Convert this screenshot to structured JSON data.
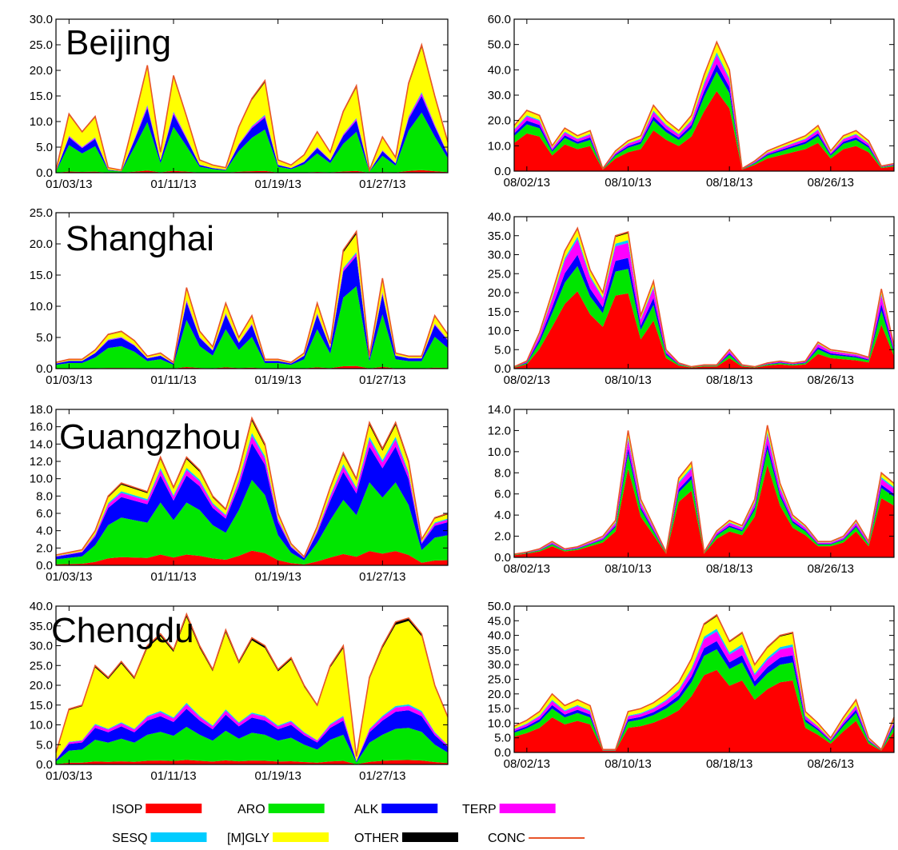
{
  "legend": [
    {
      "key": "ISOP",
      "label": "ISOP",
      "color": "#ff0000",
      "style": "bar"
    },
    {
      "key": "ARO",
      "label": "ARO",
      "color": "#00e600",
      "style": "bar"
    },
    {
      "key": "ALK",
      "label": "ALK",
      "color": "#0000ff",
      "style": "bar"
    },
    {
      "key": "TERP",
      "label": "TERP",
      "color": "#ff00ff",
      "style": "bar"
    },
    {
      "key": "SESQ",
      "label": "SESQ",
      "color": "#00ccff",
      "style": "bar"
    },
    {
      "key": "MGLY",
      "label": "[M]GLY",
      "color": "#ffff00",
      "style": "bar"
    },
    {
      "key": "OTHER",
      "label": "OTHER",
      "color": "#000000",
      "style": "bar"
    },
    {
      "key": "CONC",
      "label": "CONC",
      "color": "#e8542a",
      "style": "line"
    }
  ],
  "chart_data": [
    {
      "type": "area",
      "stacked": true,
      "city": "Beijing",
      "season": "January 2013",
      "ylim": [
        0,
        30
      ],
      "yticks": [
        "0.0",
        "5.0",
        "10.0",
        "15.0",
        "20.0",
        "25.0",
        "30.0"
      ],
      "xticks": [
        "01/03/13",
        "01/11/13",
        "01/19/13",
        "01/27/13"
      ],
      "x_start": "2013-01-02",
      "x_end": "2013-02-01",
      "tick_dates": [
        "2013-01-03",
        "2013-01-11",
        "2013-01-19",
        "2013-01-27"
      ],
      "x": [
        "2013-01-02",
        "2013-01-03",
        "2013-01-04",
        "2013-01-05",
        "2013-01-06",
        "2013-01-07",
        "2013-01-08",
        "2013-01-09",
        "2013-01-10",
        "2013-01-11",
        "2013-01-12",
        "2013-01-13",
        "2013-01-14",
        "2013-01-15",
        "2013-01-16",
        "2013-01-17",
        "2013-01-18",
        "2013-01-19",
        "2013-01-20",
        "2013-01-21",
        "2013-01-22",
        "2013-01-23",
        "2013-01-24",
        "2013-01-25",
        "2013-01-26",
        "2013-01-27",
        "2013-01-28",
        "2013-01-29",
        "2013-01-30",
        "2013-01-31",
        "2013-02-01"
      ],
      "total": [
        0.5,
        11.5,
        8.0,
        11.0,
        1.0,
        0.5,
        10.5,
        21.0,
        4.0,
        19.0,
        11.0,
        2.5,
        1.5,
        1.0,
        9.0,
        14.5,
        18.0,
        2.5,
        1.5,
        3.5,
        8.0,
        4.0,
        12.0,
        17.0,
        0.5,
        7.0,
        3.0,
        17.5,
        25.0,
        15.0,
        6.0
      ],
      "fractions": {
        "ISOP": 0.02,
        "ARO": 0.45,
        "ALK": 0.13,
        "TERP": 0.02,
        "SESQ": 0.01,
        "MGLY": 0.35,
        "OTHER": 0.02
      }
    },
    {
      "type": "area",
      "stacked": true,
      "city": "",
      "season": "August 2013",
      "ylim": [
        0,
        60
      ],
      "yticks": [
        "0.0",
        "10.0",
        "20.0",
        "30.0",
        "40.0",
        "50.0",
        "60.0"
      ],
      "xticks": [
        "08/02/13",
        "08/10/13",
        "08/18/13",
        "08/26/13"
      ],
      "x_start": "2013-08-01",
      "x_end": "2013-08-31",
      "tick_dates": [
        "2013-08-02",
        "2013-08-10",
        "2013-08-18",
        "2013-08-26"
      ],
      "x": [
        "2013-08-01",
        "2013-08-02",
        "2013-08-03",
        "2013-08-04",
        "2013-08-05",
        "2013-08-06",
        "2013-08-07",
        "2013-08-08",
        "2013-08-09",
        "2013-08-10",
        "2013-08-11",
        "2013-08-12",
        "2013-08-13",
        "2013-08-14",
        "2013-08-15",
        "2013-08-16",
        "2013-08-17",
        "2013-08-18",
        "2013-08-19",
        "2013-08-20",
        "2013-08-21",
        "2013-08-22",
        "2013-08-23",
        "2013-08-24",
        "2013-08-25",
        "2013-08-26",
        "2013-08-27",
        "2013-08-28",
        "2013-08-29",
        "2013-08-30",
        "2013-08-31"
      ],
      "total": [
        18.0,
        24.0,
        22.0,
        10.0,
        17.0,
        14.0,
        16.0,
        1.0,
        8.0,
        12.0,
        14.0,
        26.0,
        20.0,
        16.0,
        22.0,
        38.0,
        51.0,
        40.0,
        1.0,
        4.0,
        8.0,
        10.0,
        12.0,
        14.0,
        18.0,
        8.0,
        14.0,
        16.0,
        12.0,
        2.0,
        3.0
      ],
      "fractions": {
        "ISOP": 0.62,
        "ARO": 0.15,
        "ALK": 0.06,
        "TERP": 0.07,
        "SESQ": 0.02,
        "MGLY": 0.07,
        "OTHER": 0.01
      }
    },
    {
      "type": "area",
      "stacked": true,
      "city": "Shanghai",
      "season": "January 2013",
      "ylim": [
        0,
        25
      ],
      "yticks": [
        "0.0",
        "5.0",
        "10.0",
        "15.0",
        "20.0",
        "25.0"
      ],
      "xticks": [
        "01/03/13",
        "01/11/13",
        "01/19/13",
        "01/27/13"
      ],
      "x_start": "2013-01-02",
      "x_end": "2013-02-01",
      "tick_dates": [
        "2013-01-03",
        "2013-01-11",
        "2013-01-19",
        "2013-01-27"
      ],
      "x": [
        "2013-01-02",
        "2013-01-03",
        "2013-01-04",
        "2013-01-05",
        "2013-01-06",
        "2013-01-07",
        "2013-01-08",
        "2013-01-09",
        "2013-01-10",
        "2013-01-11",
        "2013-01-12",
        "2013-01-13",
        "2013-01-14",
        "2013-01-15",
        "2013-01-16",
        "2013-01-17",
        "2013-01-18",
        "2013-01-19",
        "2013-01-20",
        "2013-01-21",
        "2013-01-22",
        "2013-01-23",
        "2013-01-24",
        "2013-01-25",
        "2013-01-26",
        "2013-01-27",
        "2013-01-28",
        "2013-01-29",
        "2013-01-30",
        "2013-01-31",
        "2013-02-01"
      ],
      "total": [
        1.0,
        1.5,
        1.5,
        3.0,
        5.5,
        6.0,
        4.5,
        2.0,
        2.5,
        1.0,
        13.0,
        6.0,
        3.5,
        10.5,
        5.0,
        8.5,
        1.5,
        1.5,
        1.0,
        2.5,
        10.5,
        4.0,
        19.0,
        22.0,
        2.0,
        14.5,
        2.5,
        2.0,
        2.0,
        8.5,
        5.5
      ],
      "fractions": {
        "ISOP": 0.02,
        "ARO": 0.58,
        "ALK": 0.22,
        "TERP": 0.02,
        "SESQ": 0.01,
        "MGLY": 0.13,
        "OTHER": 0.02
      }
    },
    {
      "type": "area",
      "stacked": true,
      "city": "",
      "season": "August 2013",
      "ylim": [
        0,
        40
      ],
      "yticks": [
        "0.0",
        "5.0",
        "10.0",
        "15.0",
        "20.0",
        "25.0",
        "30.0",
        "35.0",
        "40.0"
      ],
      "xticks": [
        "08/02/13",
        "08/10/13",
        "08/18/13",
        "08/26/13"
      ],
      "x_start": "2013-08-01",
      "x_end": "2013-08-31",
      "tick_dates": [
        "2013-08-02",
        "2013-08-10",
        "2013-08-18",
        "2013-08-26"
      ],
      "x": [
        "2013-08-01",
        "2013-08-02",
        "2013-08-03",
        "2013-08-04",
        "2013-08-05",
        "2013-08-06",
        "2013-08-07",
        "2013-08-08",
        "2013-08-09",
        "2013-08-10",
        "2013-08-11",
        "2013-08-12",
        "2013-08-13",
        "2013-08-14",
        "2013-08-15",
        "2013-08-16",
        "2013-08-17",
        "2013-08-18",
        "2013-08-19",
        "2013-08-20",
        "2013-08-21",
        "2013-08-22",
        "2013-08-23",
        "2013-08-24",
        "2013-08-25",
        "2013-08-26",
        "2013-08-27",
        "2013-08-28",
        "2013-08-29",
        "2013-08-30",
        "2013-08-31"
      ],
      "total": [
        0.5,
        2.0,
        9.5,
        20.0,
        31.0,
        37.0,
        26.0,
        20.0,
        35.0,
        36.0,
        14.0,
        23.0,
        5.0,
        1.5,
        0.5,
        1.0,
        1.0,
        5.0,
        1.0,
        0.5,
        1.5,
        2.0,
        1.5,
        2.0,
        7.0,
        5.0,
        4.5,
        4.0,
        3.0,
        21.0,
        6.0
      ],
      "fractions": {
        "ISOP": 0.55,
        "ARO": 0.18,
        "ALK": 0.08,
        "TERP": 0.11,
        "SESQ": 0.02,
        "MGLY": 0.05,
        "OTHER": 0.01
      }
    },
    {
      "type": "area",
      "stacked": true,
      "city": "Guangzhou",
      "season": "January 2013",
      "ylim": [
        0,
        18
      ],
      "yticks": [
        "0.0",
        "2.0",
        "4.0",
        "6.0",
        "8.0",
        "10.0",
        "12.0",
        "14.0",
        "16.0",
        "18.0"
      ],
      "xticks": [
        "01/03/13",
        "01/11/13",
        "01/19/13",
        "01/27/13"
      ],
      "x_start": "2013-01-02",
      "x_end": "2013-02-01",
      "tick_dates": [
        "2013-01-03",
        "2013-01-11",
        "2013-01-19",
        "2013-01-27"
      ],
      "x": [
        "2013-01-02",
        "2013-01-03",
        "2013-01-04",
        "2013-01-05",
        "2013-01-06",
        "2013-01-07",
        "2013-01-08",
        "2013-01-09",
        "2013-01-10",
        "2013-01-11",
        "2013-01-12",
        "2013-01-13",
        "2013-01-14",
        "2013-01-15",
        "2013-01-16",
        "2013-01-17",
        "2013-01-18",
        "2013-01-19",
        "2013-01-20",
        "2013-01-21",
        "2013-01-22",
        "2013-01-23",
        "2013-01-24",
        "2013-01-25",
        "2013-01-26",
        "2013-01-27",
        "2013-01-28",
        "2013-01-29",
        "2013-01-30",
        "2013-01-31",
        "2013-02-01"
      ],
      "total": [
        1.2,
        1.5,
        1.8,
        4.0,
        8.0,
        9.5,
        9.0,
        8.5,
        12.5,
        9.0,
        12.5,
        11.0,
        8.0,
        6.5,
        11.0,
        17.0,
        14.0,
        6.0,
        2.5,
        1.0,
        4.5,
        9.0,
        13.0,
        10.0,
        16.5,
        13.5,
        16.5,
        12.0,
        3.0,
        5.5,
        6.0
      ],
      "fractions": {
        "ISOP": 0.1,
        "ARO": 0.48,
        "ALK": 0.25,
        "TERP": 0.05,
        "SESQ": 0.02,
        "MGLY": 0.08,
        "OTHER": 0.02
      }
    },
    {
      "type": "area",
      "stacked": true,
      "city": "",
      "season": "August 2013",
      "ylim": [
        0,
        14
      ],
      "yticks": [
        "0.0",
        "2.0",
        "4.0",
        "6.0",
        "8.0",
        "10.0",
        "12.0",
        "14.0"
      ],
      "xticks": [
        "08/02/13",
        "08/10/13",
        "08/18/13",
        "08/26/13"
      ],
      "x_start": "2013-08-01",
      "x_end": "2013-08-31",
      "tick_dates": [
        "2013-08-02",
        "2013-08-10",
        "2013-08-18",
        "2013-08-26"
      ],
      "x": [
        "2013-08-01",
        "2013-08-02",
        "2013-08-03",
        "2013-08-04",
        "2013-08-05",
        "2013-08-06",
        "2013-08-07",
        "2013-08-08",
        "2013-08-09",
        "2013-08-10",
        "2013-08-11",
        "2013-08-12",
        "2013-08-13",
        "2013-08-14",
        "2013-08-15",
        "2013-08-16",
        "2013-08-17",
        "2013-08-18",
        "2013-08-19",
        "2013-08-20",
        "2013-08-21",
        "2013-08-22",
        "2013-08-23",
        "2013-08-24",
        "2013-08-25",
        "2013-08-26",
        "2013-08-27",
        "2013-08-28",
        "2013-08-29",
        "2013-08-30",
        "2013-08-31"
      ],
      "total": [
        0.3,
        0.5,
        0.8,
        1.5,
        0.8,
        1.0,
        1.5,
        2.0,
        3.5,
        12.0,
        5.5,
        3.0,
        0.5,
        7.5,
        9.0,
        0.5,
        2.5,
        3.5,
        3.0,
        5.5,
        12.5,
        7.0,
        4.0,
        3.0,
        1.5,
        1.5,
        2.0,
        3.5,
        1.5,
        8.0,
        7.0
      ],
      "fractions": {
        "ISOP": 0.7,
        "ARO": 0.12,
        "ALK": 0.04,
        "TERP": 0.07,
        "SESQ": 0.02,
        "MGLY": 0.04,
        "OTHER": 0.01
      }
    },
    {
      "type": "area",
      "stacked": true,
      "city": "Chengdu",
      "season": "January 2013",
      "ylim": [
        0,
        40
      ],
      "yticks": [
        "0.0",
        "5.0",
        "10.0",
        "15.0",
        "20.0",
        "25.0",
        "30.0",
        "35.0",
        "40.0"
      ],
      "xticks": [
        "01/03/13",
        "01/11/13",
        "01/19/13",
        "01/27/13"
      ],
      "x_start": "2013-01-02",
      "x_end": "2013-02-01",
      "tick_dates": [
        "2013-01-03",
        "2013-01-11",
        "2013-01-19",
        "2013-01-27"
      ],
      "x": [
        "2013-01-02",
        "2013-01-03",
        "2013-01-04",
        "2013-01-05",
        "2013-01-06",
        "2013-01-07",
        "2013-01-08",
        "2013-01-09",
        "2013-01-10",
        "2013-01-11",
        "2013-01-12",
        "2013-01-13",
        "2013-01-14",
        "2013-01-15",
        "2013-01-16",
        "2013-01-17",
        "2013-01-18",
        "2013-01-19",
        "2013-01-20",
        "2013-01-21",
        "2013-01-22",
        "2013-01-23",
        "2013-01-24",
        "2013-01-25",
        "2013-01-26",
        "2013-01-27",
        "2013-01-28",
        "2013-01-29",
        "2013-01-30",
        "2013-01-31",
        "2013-02-01"
      ],
      "total": [
        3.0,
        14.0,
        15.0,
        25.0,
        22.0,
        26.0,
        22.0,
        30.0,
        33.0,
        29.0,
        38.0,
        30.0,
        24.0,
        34.0,
        26.0,
        32.0,
        30.0,
        24.0,
        27.0,
        20.0,
        15.0,
        25.0,
        30.0,
        2.0,
        22.0,
        30.0,
        36.0,
        37.0,
        33.0,
        20.0,
        12.0
      ],
      "fractions": {
        "ISOP": 0.03,
        "ARO": 0.22,
        "ALK": 0.12,
        "TERP": 0.03,
        "SESQ": 0.01,
        "MGLY": 0.57,
        "OTHER": 0.02
      }
    },
    {
      "type": "area",
      "stacked": true,
      "city": "",
      "season": "August 2013",
      "ylim": [
        0,
        50
      ],
      "yticks": [
        "0.0",
        "5.0",
        "10.0",
        "15.0",
        "20.0",
        "25.0",
        "30.0",
        "35.0",
        "40.0",
        "45.0",
        "50.0"
      ],
      "xticks": [
        "08/02/13",
        "08/10/13",
        "08/18/13",
        "08/26/13"
      ],
      "x_start": "2013-08-01",
      "x_end": "2013-08-31",
      "tick_dates": [
        "2013-08-02",
        "2013-08-10",
        "2013-08-18",
        "2013-08-26"
      ],
      "x": [
        "2013-08-01",
        "2013-08-02",
        "2013-08-03",
        "2013-08-04",
        "2013-08-05",
        "2013-08-06",
        "2013-08-07",
        "2013-08-08",
        "2013-08-09",
        "2013-08-10",
        "2013-08-11",
        "2013-08-12",
        "2013-08-13",
        "2013-08-14",
        "2013-08-15",
        "2013-08-16",
        "2013-08-17",
        "2013-08-18",
        "2013-08-19",
        "2013-08-20",
        "2013-08-21",
        "2013-08-22",
        "2013-08-23",
        "2013-08-24",
        "2013-08-25",
        "2013-08-26",
        "2013-08-27",
        "2013-08-28",
        "2013-08-29",
        "2013-08-30",
        "2013-08-31"
      ],
      "total": [
        9.0,
        11.0,
        14.0,
        20.0,
        16.0,
        18.0,
        16.0,
        1.0,
        1.0,
        14.0,
        15.0,
        17.0,
        20.0,
        24.0,
        32.0,
        44.0,
        47.0,
        38.0,
        41.0,
        30.0,
        36.0,
        40.0,
        41.0,
        14.0,
        10.0,
        5.0,
        12.0,
        18.0,
        5.0,
        1.0,
        12.0
      ],
      "fractions": {
        "ISOP": 0.6,
        "ARO": 0.15,
        "ALK": 0.06,
        "TERP": 0.07,
        "SESQ": 0.02,
        "MGLY": 0.09,
        "OTHER": 0.01
      }
    }
  ]
}
